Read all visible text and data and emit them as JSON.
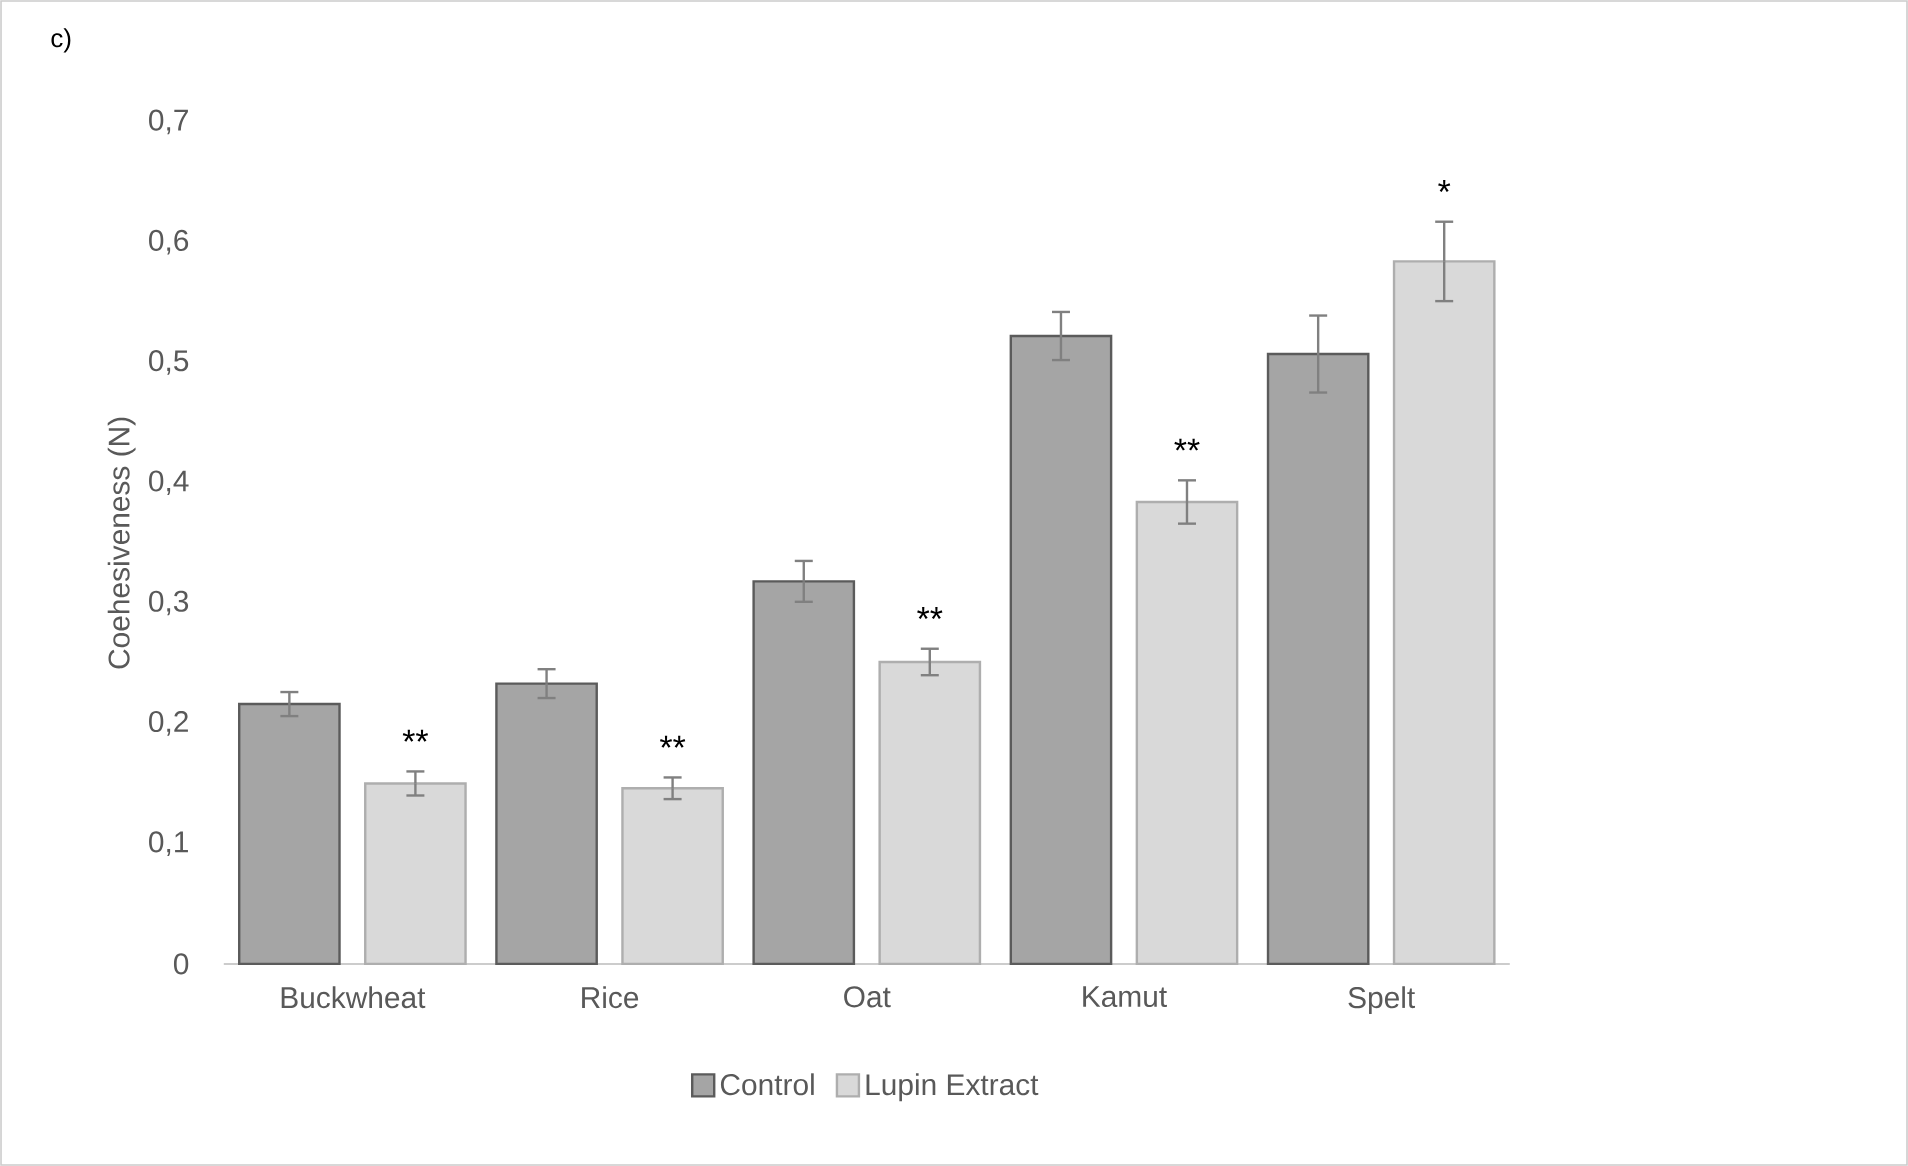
{
  "chart_data": {
    "type": "bar",
    "ylabel": "Coehesiveness (N)",
    "categories": [
      "Buckwheat",
      "Rice",
      "Oat",
      "Kamut",
      "Spelt"
    ],
    "series": [
      {
        "name": "Control",
        "color": "#a5a5a5",
        "values": [
          0.216,
          0.233,
          0.318,
          0.522,
          0.507
        ],
        "errors": [
          0.01,
          0.012,
          0.017,
          0.02,
          0.032
        ]
      },
      {
        "name": "Lupin Extract",
        "color": "#d9d9d9",
        "values": [
          0.15,
          0.146,
          0.251,
          0.384,
          0.584
        ],
        "errors": [
          0.01,
          0.009,
          0.011,
          0.018,
          0.033
        ]
      }
    ],
    "ylim": [
      0,
      0.7
    ],
    "yticks": [
      0,
      {
        "value": 0.1,
        "label": "0,1"
      },
      {
        "value": 0.2,
        "label": "0,2"
      },
      {
        "value": 0.3,
        "label": "0,3"
      },
      {
        "value": 0.4,
        "label": "0,4"
      },
      {
        "value": 0.5,
        "label": "0,5"
      },
      {
        "value": 0.6,
        "label": "0,6"
      },
      {
        "value": 0.7,
        "label": "0,7"
      }
    ],
    "grid": false,
    "legend": "bottom",
    "annotations": [
      "c)",
      "**",
      "**",
      "**",
      "**",
      "*"
    ]
  }
}
